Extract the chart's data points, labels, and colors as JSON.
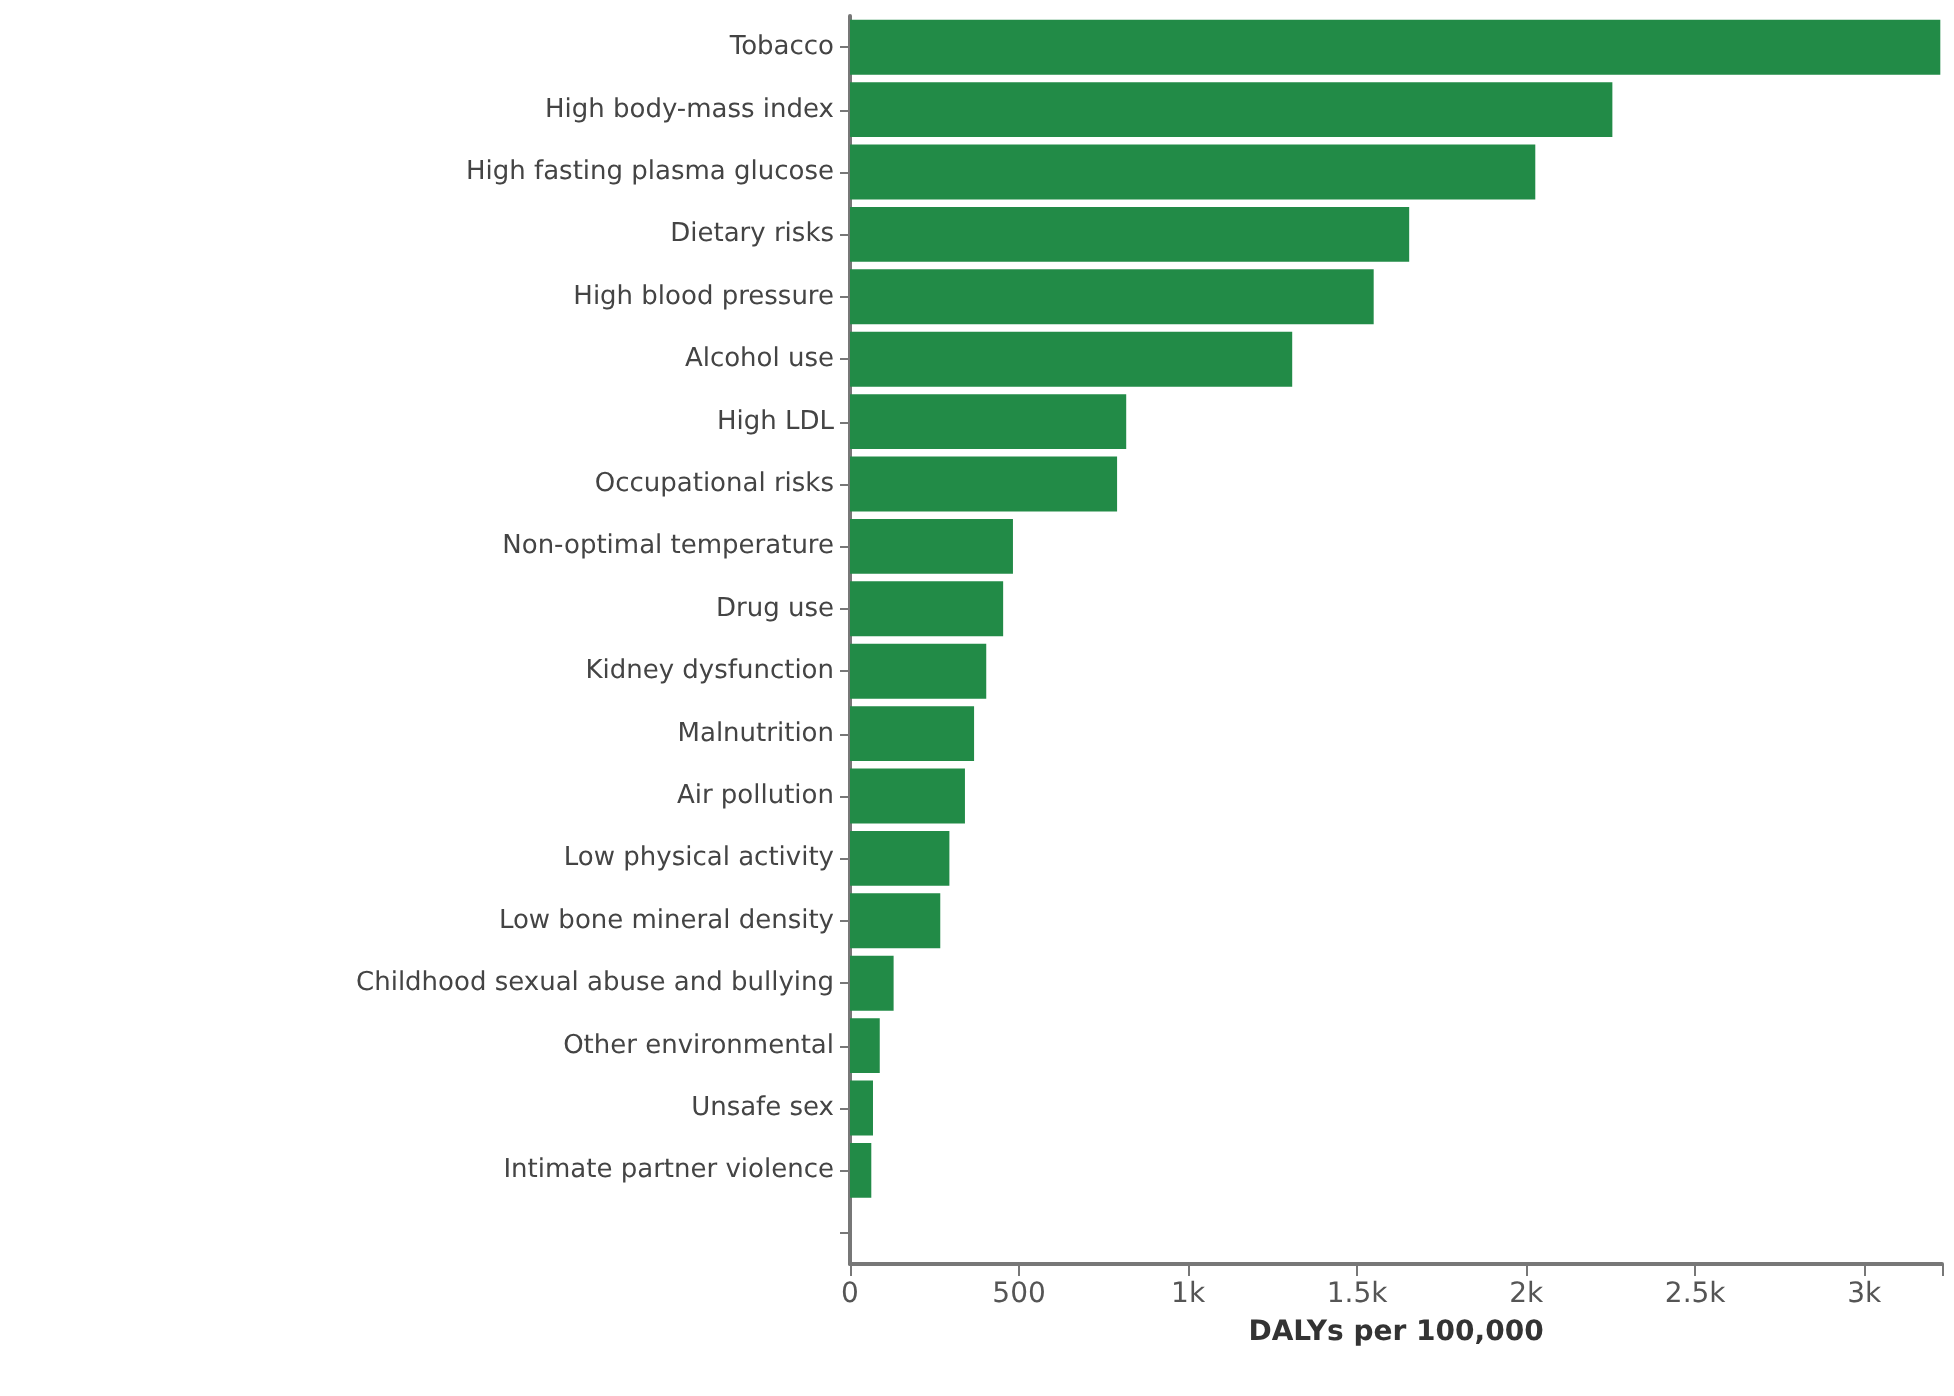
{
  "chart_data": {
    "type": "bar",
    "orientation": "horizontal",
    "xlabel": "DALYs per 100,000",
    "categories": [
      "Tobacco",
      "High body-mass index",
      "High fasting plasma glucose",
      "Dietary risks",
      "High blood pressure",
      "Alcohol use",
      "High LDL",
      "Occupational risks",
      "Non-optimal temperature",
      "Drug use",
      "Kidney dysfunction",
      "Malnutrition",
      "Air pollution",
      "Low physical activity",
      "Low bone mineral density",
      "Childhood sexual abuse and bullying",
      "Other environmental",
      "Unsafe sex",
      "Intimate partner violence",
      null
    ],
    "values": [
      3225,
      2255,
      2027,
      1654,
      1549,
      1308,
      817,
      790,
      482,
      453,
      403,
      367,
      340,
      294,
      267,
      129,
      88,
      68,
      63,
      null
    ],
    "color": "#228b47",
    "xlim": [
      0,
      3230
    ],
    "xticks": [
      0,
      500,
      {
        "value": 1000,
        "label": "1k"
      },
      {
        "value": 1500,
        "label": "1.5k"
      },
      {
        "value": 2000,
        "label": "2k"
      },
      {
        "value": 2500,
        "label": "2.5k"
      },
      {
        "value": 3000,
        "label": "3k"
      }
    ],
    "grid": false
  }
}
